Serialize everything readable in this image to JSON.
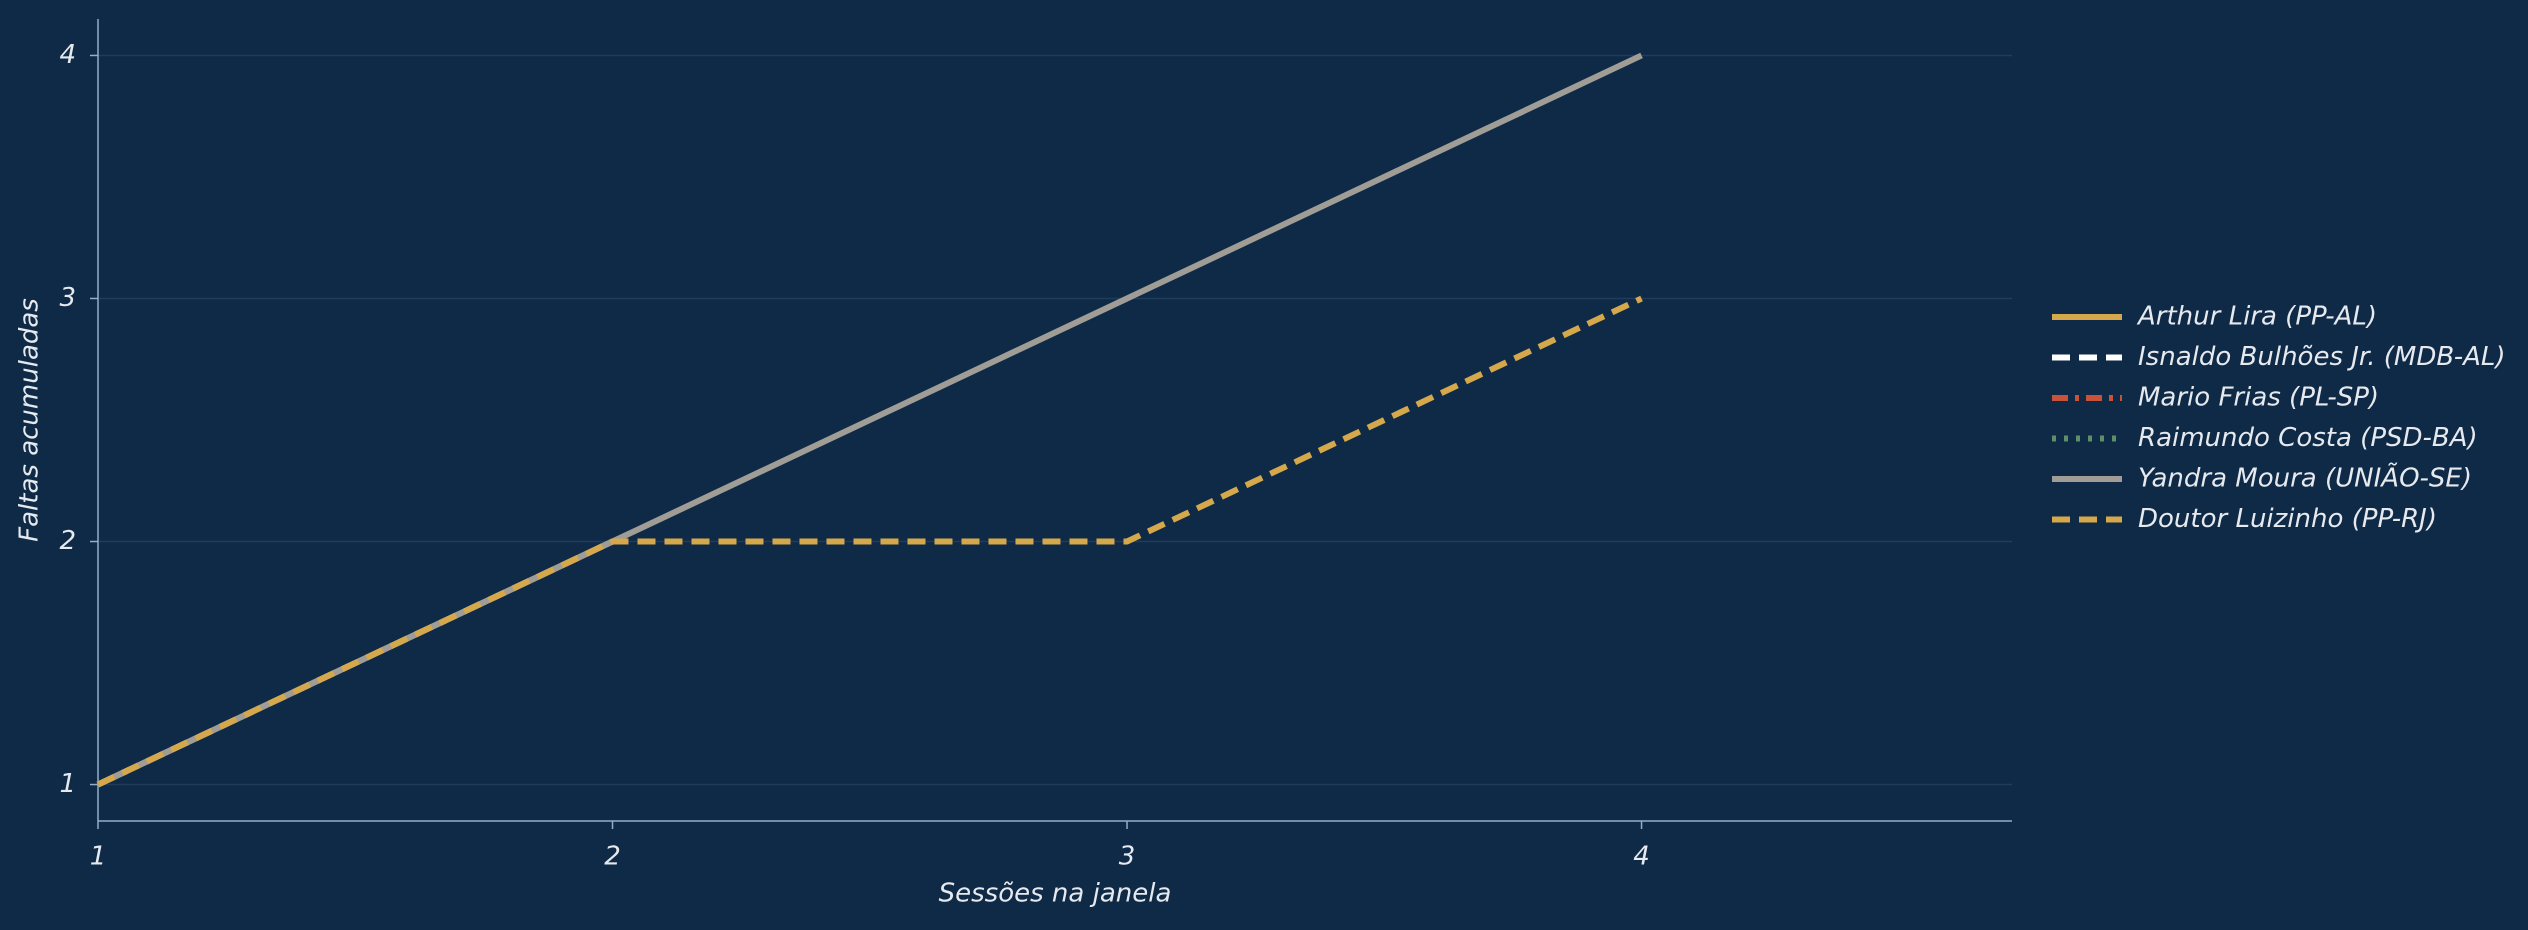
{
  "chart_data": {
    "type": "line",
    "xlabel": "Sessões na janela",
    "ylabel": "Faltas acumuladas",
    "x": [
      1,
      2,
      3,
      4
    ],
    "series": [
      {
        "name": "Arthur Lira (PP-AL)",
        "color": "#d4a84b",
        "dash": "solid",
        "values": [
          1,
          2,
          null,
          null
        ]
      },
      {
        "name": "Isnaldo Bulhões Jr. (MDB-AL)",
        "color": "#ffffff",
        "dash": "dashed",
        "values": [
          1,
          2,
          null,
          null
        ]
      },
      {
        "name": "Mario Frias (PL-SP)",
        "color": "#c9533a",
        "dash": "dashdot",
        "values": [
          1,
          2,
          null,
          null
        ]
      },
      {
        "name": "Raimundo Costa (PSD-BA)",
        "color": "#5f8f6a",
        "dash": "dotted",
        "values": [
          1,
          2,
          null,
          null
        ]
      },
      {
        "name": "Yandra Moura (UNIÃO-SE)",
        "color": "#a09d96",
        "dash": "solid",
        "values": [
          1,
          2,
          3,
          4
        ]
      },
      {
        "name": "Doutor Luizinho (PP-RJ)",
        "color": "#d4a84b",
        "dash": "dashed",
        "values": [
          1,
          2,
          2,
          3
        ]
      }
    ],
    "xlim": [
      1,
      4.72
    ],
    "ylim": [
      0.85,
      4.15
    ],
    "xticks": [
      1,
      2,
      3,
      4
    ],
    "yticks": [
      1,
      2,
      3,
      4
    ],
    "grid": true,
    "legend": "right"
  }
}
